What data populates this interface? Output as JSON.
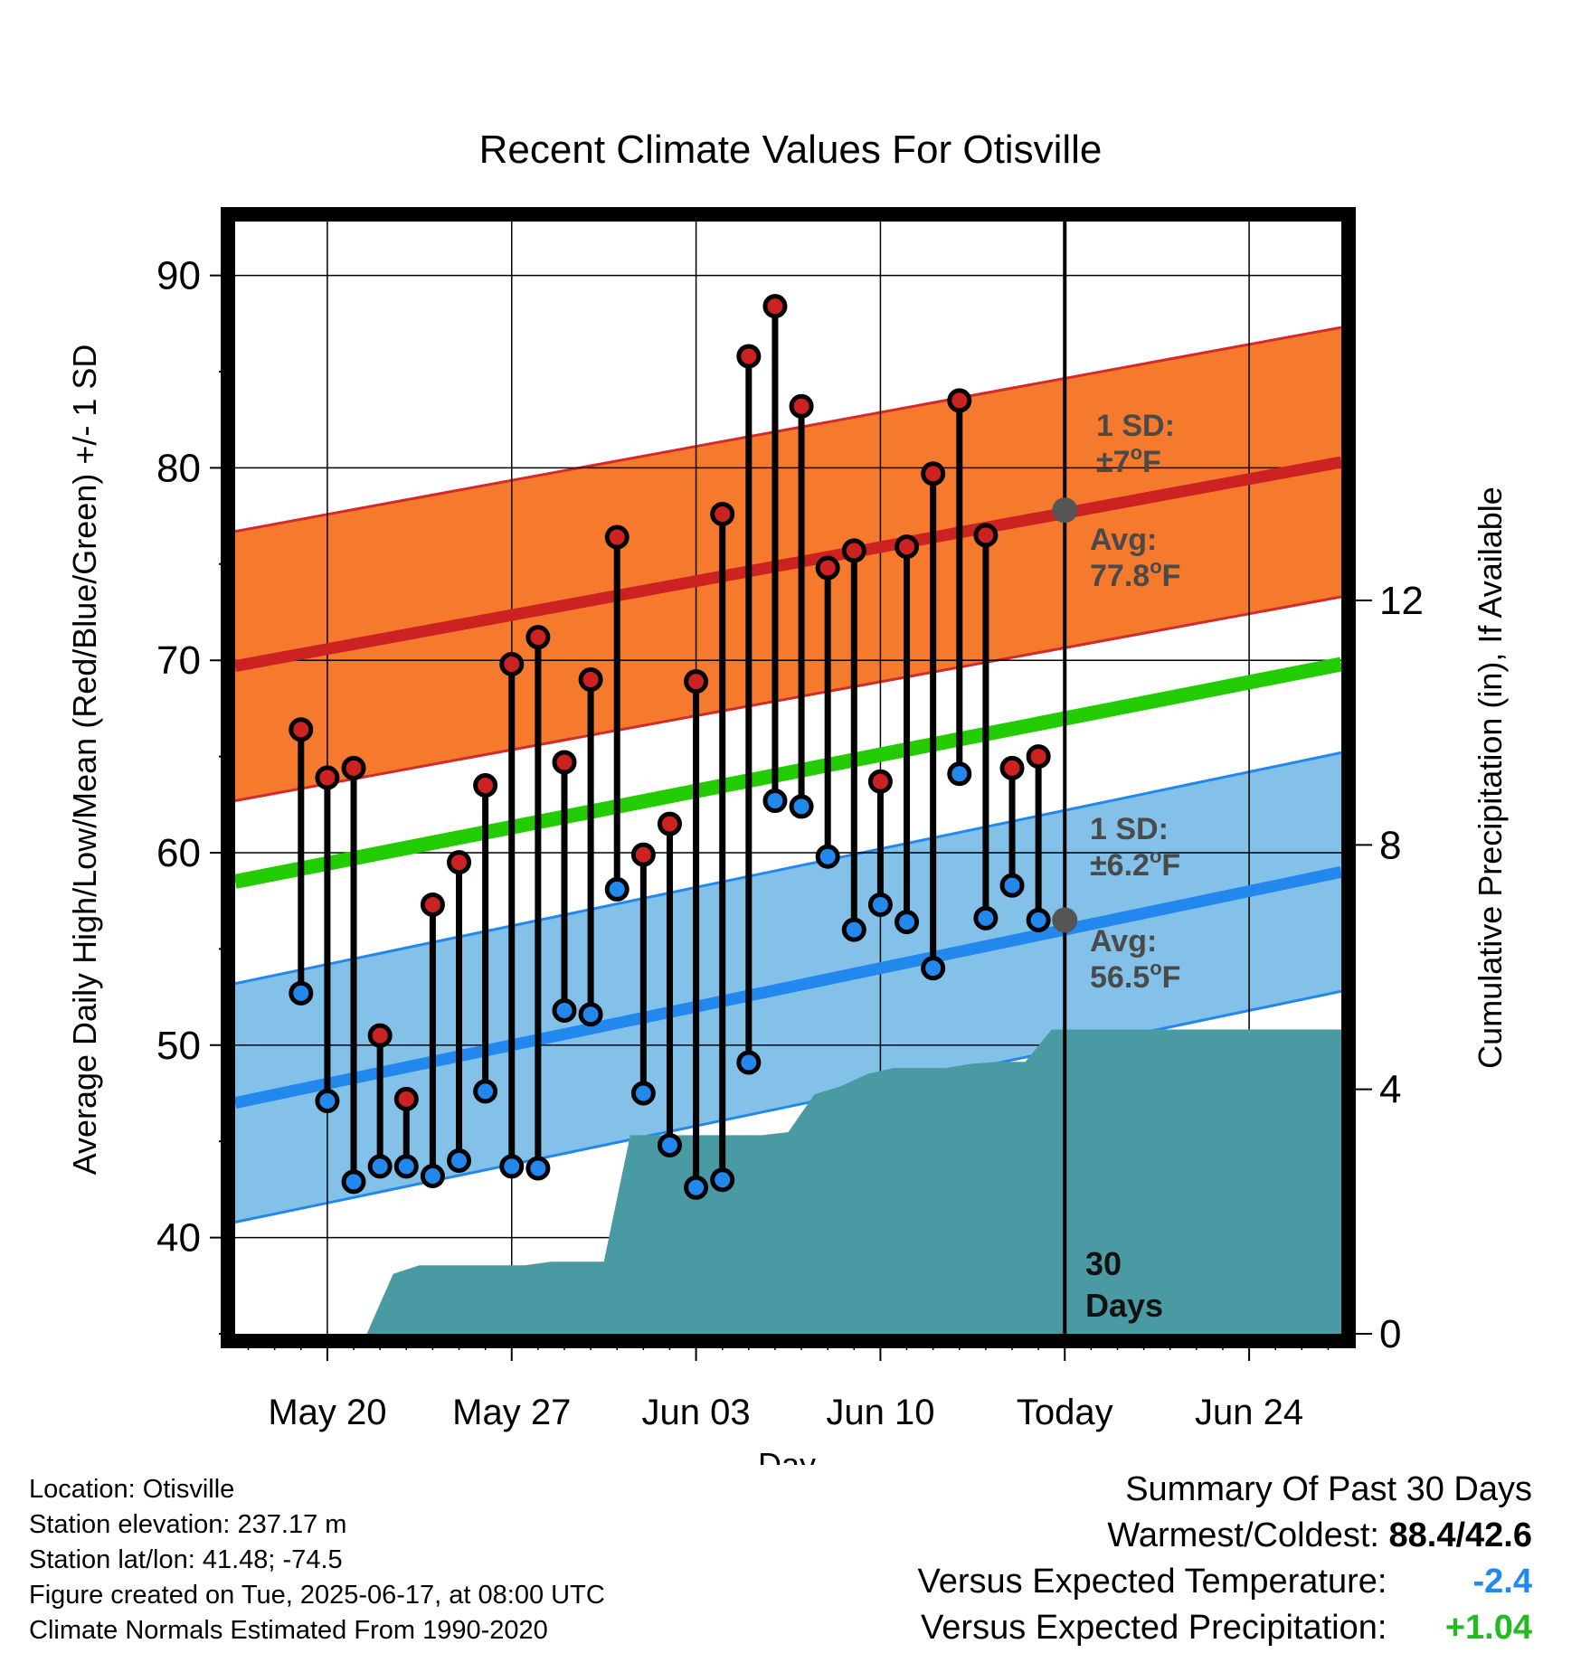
{
  "chart_data": {
    "type": "line",
    "title": "Recent Climate Values For Otisville",
    "xlabel": "Day",
    "ylabel": "Average Daily High/Low/Mean (Red/Blue/Green) +/- 1 SD",
    "y2label": "Cumulative Precipitation (in), If Available",
    "ylim": [
      35,
      92.8
    ],
    "y2lim": [
      0,
      18.2
    ],
    "yticks": [
      40,
      50,
      60,
      70,
      80,
      90
    ],
    "y2ticks": [
      0,
      4,
      8,
      12
    ],
    "xlim": [
      -1.5,
      40.5
    ],
    "xticks": [
      {
        "day": 2,
        "label": "May 20"
      },
      {
        "day": 9,
        "label": "May 27"
      },
      {
        "day": 16,
        "label": "Jun 03"
      },
      {
        "day": 23,
        "label": "Jun 10"
      },
      {
        "day": 30,
        "label": "Today"
      },
      {
        "day": 37,
        "label": "Jun 24"
      }
    ],
    "grid": true,
    "today_day": 30,
    "window_label": "30\nDays",
    "normals": {
      "start_day": -1.5,
      "end_day": 40.5,
      "high_avg": [
        69.7,
        80.3
      ],
      "high_sd": 7,
      "low_avg": [
        47.0,
        59.0
      ],
      "low_sd": 6.2,
      "mean_avg": [
        58.5,
        69.8
      ]
    },
    "annotations": {
      "high_sd_label": "1 SD:",
      "high_sd_value": "±7",
      "high_avg_label": "Avg:",
      "high_avg_value": "77.8",
      "low_sd_label": "1 SD:",
      "low_sd_value": "±6.2",
      "low_avg_label": "Avg:",
      "low_avg_value": "56.5",
      "degree_unit": "o",
      "unit_letter": "F"
    },
    "today_markers": {
      "high": 77.8,
      "low": 56.5
    },
    "series": [
      {
        "name": "High",
        "color": "#cc2222",
        "x": [
          1,
          2,
          3,
          4,
          5,
          6,
          7,
          8,
          9,
          10,
          11,
          12,
          13,
          14,
          15,
          16,
          17,
          18,
          19,
          20,
          21,
          22,
          23,
          24,
          25,
          26,
          27,
          28,
          29
        ],
        "values": [
          66.4,
          63.9,
          64.4,
          50.5,
          47.2,
          57.3,
          59.5,
          63.5,
          69.8,
          71.2,
          64.7,
          69.0,
          76.4,
          59.9,
          61.5,
          68.9,
          77.6,
          85.8,
          88.4,
          83.2,
          74.8,
          75.7,
          63.7,
          75.9,
          79.7,
          83.5,
          76.5,
          64.4,
          65.0
        ]
      },
      {
        "name": "Low",
        "color": "#2288ee",
        "x": [
          1,
          2,
          3,
          4,
          5,
          6,
          7,
          8,
          9,
          10,
          11,
          12,
          13,
          14,
          15,
          16,
          17,
          18,
          19,
          20,
          21,
          22,
          23,
          24,
          25,
          26,
          27,
          28,
          29
        ],
        "values": [
          52.7,
          47.1,
          42.9,
          43.7,
          43.7,
          43.2,
          44.0,
          47.6,
          43.7,
          43.6,
          51.8,
          51.6,
          58.1,
          47.5,
          44.8,
          42.6,
          43.0,
          49.1,
          62.7,
          62.4,
          59.8,
          56.0,
          57.3,
          56.4,
          54.0,
          64.1,
          56.6,
          58.3,
          56.5
        ]
      }
    ],
    "extra_point": {
      "x": 29,
      "high": 66.1,
      "low": 54.1
    },
    "precip": {
      "x": [
        -1.5,
        1.5,
        2.5,
        3.5,
        4.5,
        5.5,
        6.5,
        7.5,
        8.5,
        9.5,
        10.5,
        11.5,
        12.5,
        13.5,
        14.5,
        15.5,
        16.5,
        17.5,
        18.5,
        19.5,
        20.5,
        21.5,
        22.5,
        23.5,
        24.5,
        25.5,
        26.5,
        27.5,
        28.5,
        29.5,
        40.5
      ],
      "values": [
        0,
        0,
        0,
        0,
        0.98,
        1.12,
        1.12,
        1.12,
        1.12,
        1.12,
        1.18,
        1.18,
        1.18,
        3.25,
        3.25,
        3.25,
        3.25,
        3.25,
        3.25,
        3.3,
        3.92,
        4.05,
        4.25,
        4.35,
        4.35,
        4.35,
        4.42,
        4.45,
        4.45,
        4.98,
        4.98
      ],
      "color": "#4a9aa4"
    }
  },
  "footer": {
    "location": "Location: Otisville",
    "elevation": "Station elevation: 237.17 m",
    "latlon": "Station lat/lon: 41.48; -74.5",
    "created": "Figure created on Tue, 2025-06-17, at 08:00 UTC",
    "normals": "Climate Normals Estimated From 1990-2020"
  },
  "summary": {
    "title": "Summary Of Past 30 Days",
    "warm_cold_label": "Warmest/Coldest:",
    "warm_cold_value": "88.4/42.6",
    "temp_label": "Versus Expected Temperature:",
    "temp_value": "-2.4",
    "temp_color": "#2288ee",
    "precip_label": "Versus Expected Precipitation:",
    "precip_value": "+1.04",
    "precip_color": "#22bb22"
  }
}
